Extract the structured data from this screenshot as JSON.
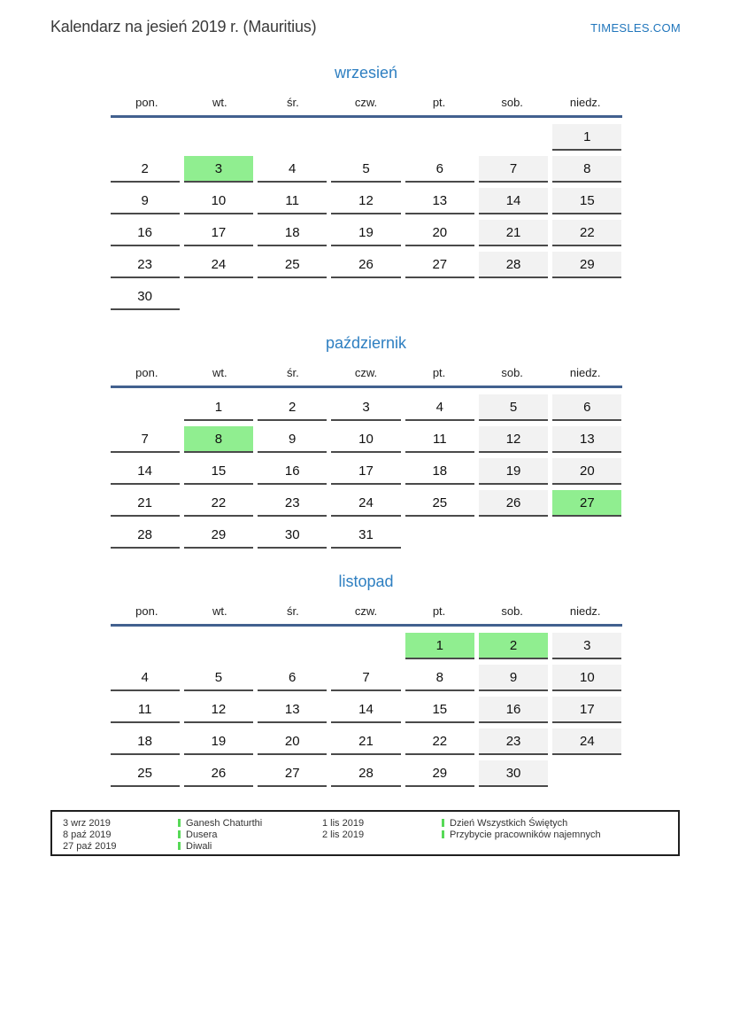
{
  "header": {
    "title": "Kalendarz na jesień 2019 r. (Mauritius)",
    "brand": "TIMESLES.COM"
  },
  "colors": {
    "holiday_green": "#90ee90",
    "weekend_gray": "#f2f2f2",
    "month_title_blue": "#2e7fc1",
    "rule_blue": "#42618f",
    "legend_marker_green": "#57d957",
    "brand_blue": "#2076bc"
  },
  "weekday_headers": [
    "pon.",
    "wt.",
    "śr.",
    "czw.",
    "pt.",
    "sob.",
    "niedz."
  ],
  "months": [
    {
      "name": "wrzesień",
      "weeks": [
        [
          null,
          null,
          null,
          null,
          null,
          null,
          {
            "d": 1,
            "t": "weekend"
          }
        ],
        [
          {
            "d": 2,
            "t": "work"
          },
          {
            "d": 3,
            "t": "holiday"
          },
          {
            "d": 4,
            "t": "work"
          },
          {
            "d": 5,
            "t": "work"
          },
          {
            "d": 6,
            "t": "work"
          },
          {
            "d": 7,
            "t": "weekend"
          },
          {
            "d": 8,
            "t": "weekend"
          }
        ],
        [
          {
            "d": 9,
            "t": "work"
          },
          {
            "d": 10,
            "t": "work"
          },
          {
            "d": 11,
            "t": "work"
          },
          {
            "d": 12,
            "t": "work"
          },
          {
            "d": 13,
            "t": "work"
          },
          {
            "d": 14,
            "t": "weekend"
          },
          {
            "d": 15,
            "t": "weekend"
          }
        ],
        [
          {
            "d": 16,
            "t": "work"
          },
          {
            "d": 17,
            "t": "work"
          },
          {
            "d": 18,
            "t": "work"
          },
          {
            "d": 19,
            "t": "work"
          },
          {
            "d": 20,
            "t": "work"
          },
          {
            "d": 21,
            "t": "weekend"
          },
          {
            "d": 22,
            "t": "weekend"
          }
        ],
        [
          {
            "d": 23,
            "t": "work"
          },
          {
            "d": 24,
            "t": "work"
          },
          {
            "d": 25,
            "t": "work"
          },
          {
            "d": 26,
            "t": "work"
          },
          {
            "d": 27,
            "t": "work"
          },
          {
            "d": 28,
            "t": "weekend"
          },
          {
            "d": 29,
            "t": "weekend"
          }
        ],
        [
          {
            "d": 30,
            "t": "work"
          },
          null,
          null,
          null,
          null,
          null,
          null
        ]
      ]
    },
    {
      "name": "październik",
      "weeks": [
        [
          null,
          {
            "d": 1,
            "t": "work"
          },
          {
            "d": 2,
            "t": "work"
          },
          {
            "d": 3,
            "t": "work"
          },
          {
            "d": 4,
            "t": "work"
          },
          {
            "d": 5,
            "t": "weekend"
          },
          {
            "d": 6,
            "t": "weekend"
          }
        ],
        [
          {
            "d": 7,
            "t": "work"
          },
          {
            "d": 8,
            "t": "holiday"
          },
          {
            "d": 9,
            "t": "work"
          },
          {
            "d": 10,
            "t": "work"
          },
          {
            "d": 11,
            "t": "work"
          },
          {
            "d": 12,
            "t": "weekend"
          },
          {
            "d": 13,
            "t": "weekend"
          }
        ],
        [
          {
            "d": 14,
            "t": "work"
          },
          {
            "d": 15,
            "t": "work"
          },
          {
            "d": 16,
            "t": "work"
          },
          {
            "d": 17,
            "t": "work"
          },
          {
            "d": 18,
            "t": "work"
          },
          {
            "d": 19,
            "t": "weekend"
          },
          {
            "d": 20,
            "t": "weekend"
          }
        ],
        [
          {
            "d": 21,
            "t": "work"
          },
          {
            "d": 22,
            "t": "work"
          },
          {
            "d": 23,
            "t": "work"
          },
          {
            "d": 24,
            "t": "work"
          },
          {
            "d": 25,
            "t": "work"
          },
          {
            "d": 26,
            "t": "weekend"
          },
          {
            "d": 27,
            "t": "holiday"
          }
        ],
        [
          {
            "d": 28,
            "t": "work"
          },
          {
            "d": 29,
            "t": "work"
          },
          {
            "d": 30,
            "t": "work"
          },
          {
            "d": 31,
            "t": "work"
          },
          null,
          null,
          null
        ]
      ]
    },
    {
      "name": "listopad",
      "weeks": [
        [
          null,
          null,
          null,
          null,
          {
            "d": 1,
            "t": "holiday"
          },
          {
            "d": 2,
            "t": "holiday"
          },
          {
            "d": 3,
            "t": "weekend"
          }
        ],
        [
          {
            "d": 4,
            "t": "work"
          },
          {
            "d": 5,
            "t": "work"
          },
          {
            "d": 6,
            "t": "work"
          },
          {
            "d": 7,
            "t": "work"
          },
          {
            "d": 8,
            "t": "work"
          },
          {
            "d": 9,
            "t": "weekend"
          },
          {
            "d": 10,
            "t": "weekend"
          }
        ],
        [
          {
            "d": 11,
            "t": "work"
          },
          {
            "d": 12,
            "t": "work"
          },
          {
            "d": 13,
            "t": "work"
          },
          {
            "d": 14,
            "t": "work"
          },
          {
            "d": 15,
            "t": "work"
          },
          {
            "d": 16,
            "t": "weekend"
          },
          {
            "d": 17,
            "t": "weekend"
          }
        ],
        [
          {
            "d": 18,
            "t": "work"
          },
          {
            "d": 19,
            "t": "work"
          },
          {
            "d": 20,
            "t": "work"
          },
          {
            "d": 21,
            "t": "work"
          },
          {
            "d": 22,
            "t": "work"
          },
          {
            "d": 23,
            "t": "weekend"
          },
          {
            "d": 24,
            "t": "weekend"
          }
        ],
        [
          {
            "d": 25,
            "t": "work"
          },
          {
            "d": 26,
            "t": "work"
          },
          {
            "d": 27,
            "t": "work"
          },
          {
            "d": 28,
            "t": "work"
          },
          {
            "d": 29,
            "t": "work"
          },
          {
            "d": 30,
            "t": "weekend"
          },
          null
        ]
      ]
    }
  ],
  "legend": {
    "columns": [
      [
        {
          "date": "3 wrz 2019",
          "label": "Ganesh Chaturthi"
        },
        {
          "date": "8 paź 2019",
          "label": "Dusera"
        },
        {
          "date": "27 paź 2019",
          "label": "Diwali"
        }
      ],
      [
        {
          "date": "1 lis 2019",
          "label": "Dzień Wszystkich Świętych"
        },
        {
          "date": "2 lis 2019",
          "label": "Przybycie pracowników najemnych"
        }
      ]
    ]
  }
}
